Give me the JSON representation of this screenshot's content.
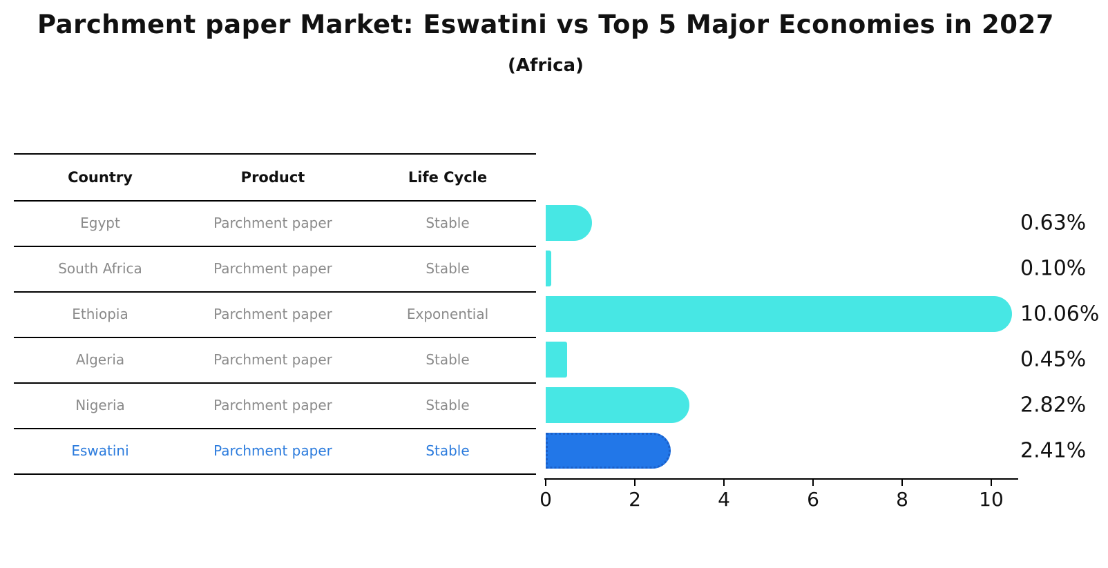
{
  "title": "Parchment paper Market: Eswatini vs Top 5 Major Economies in 2027",
  "subtitle": "(Africa)",
  "table": {
    "headers": {
      "country": "Country",
      "product": "Product",
      "life_cycle": "Life Cycle"
    }
  },
  "chart_data": {
    "type": "bar",
    "orientation": "horizontal",
    "title": "Parchment paper Market: Eswatini vs Top 5 Major Economies in 2027",
    "subtitle": "(Africa)",
    "xlabel": "",
    "ylabel": "",
    "xlim": [
      0,
      10.6
    ],
    "x_ticks": [
      0,
      2,
      4,
      6,
      8,
      10
    ],
    "grid": false,
    "legend": "none",
    "value_unit": "%",
    "rows": [
      {
        "country": "Egypt",
        "product": "Parchment paper",
        "life_cycle": "Stable",
        "value": 0.63,
        "value_label": "0.63%",
        "highlighted": false
      },
      {
        "country": "South Africa",
        "product": "Parchment paper",
        "life_cycle": "Stable",
        "value": 0.1,
        "value_label": "0.10%",
        "highlighted": false
      },
      {
        "country": "Ethiopia",
        "product": "Parchment paper",
        "life_cycle": "Exponential",
        "value": 10.06,
        "value_label": "10.06%",
        "highlighted": false
      },
      {
        "country": "Algeria",
        "product": "Parchment paper",
        "life_cycle": "Stable",
        "value": 0.45,
        "value_label": "0.45%",
        "highlighted": false
      },
      {
        "country": "Nigeria",
        "product": "Parchment paper",
        "life_cycle": "Stable",
        "value": 2.82,
        "value_label": "2.82%",
        "highlighted": false
      },
      {
        "country": "Eswatini",
        "product": "Parchment paper",
        "life_cycle": "Stable",
        "value": 2.41,
        "value_label": "2.41%",
        "highlighted": true
      }
    ],
    "colors": {
      "bar": "#47E7E4",
      "highlight_bar": "#2277E8",
      "highlight_border": "#125cd0",
      "highlight_text": "#2b7bdd",
      "table_text": "#8a8a8a",
      "header_text": "#111111",
      "axis": "#000000",
      "background": "#ffffff"
    }
  }
}
